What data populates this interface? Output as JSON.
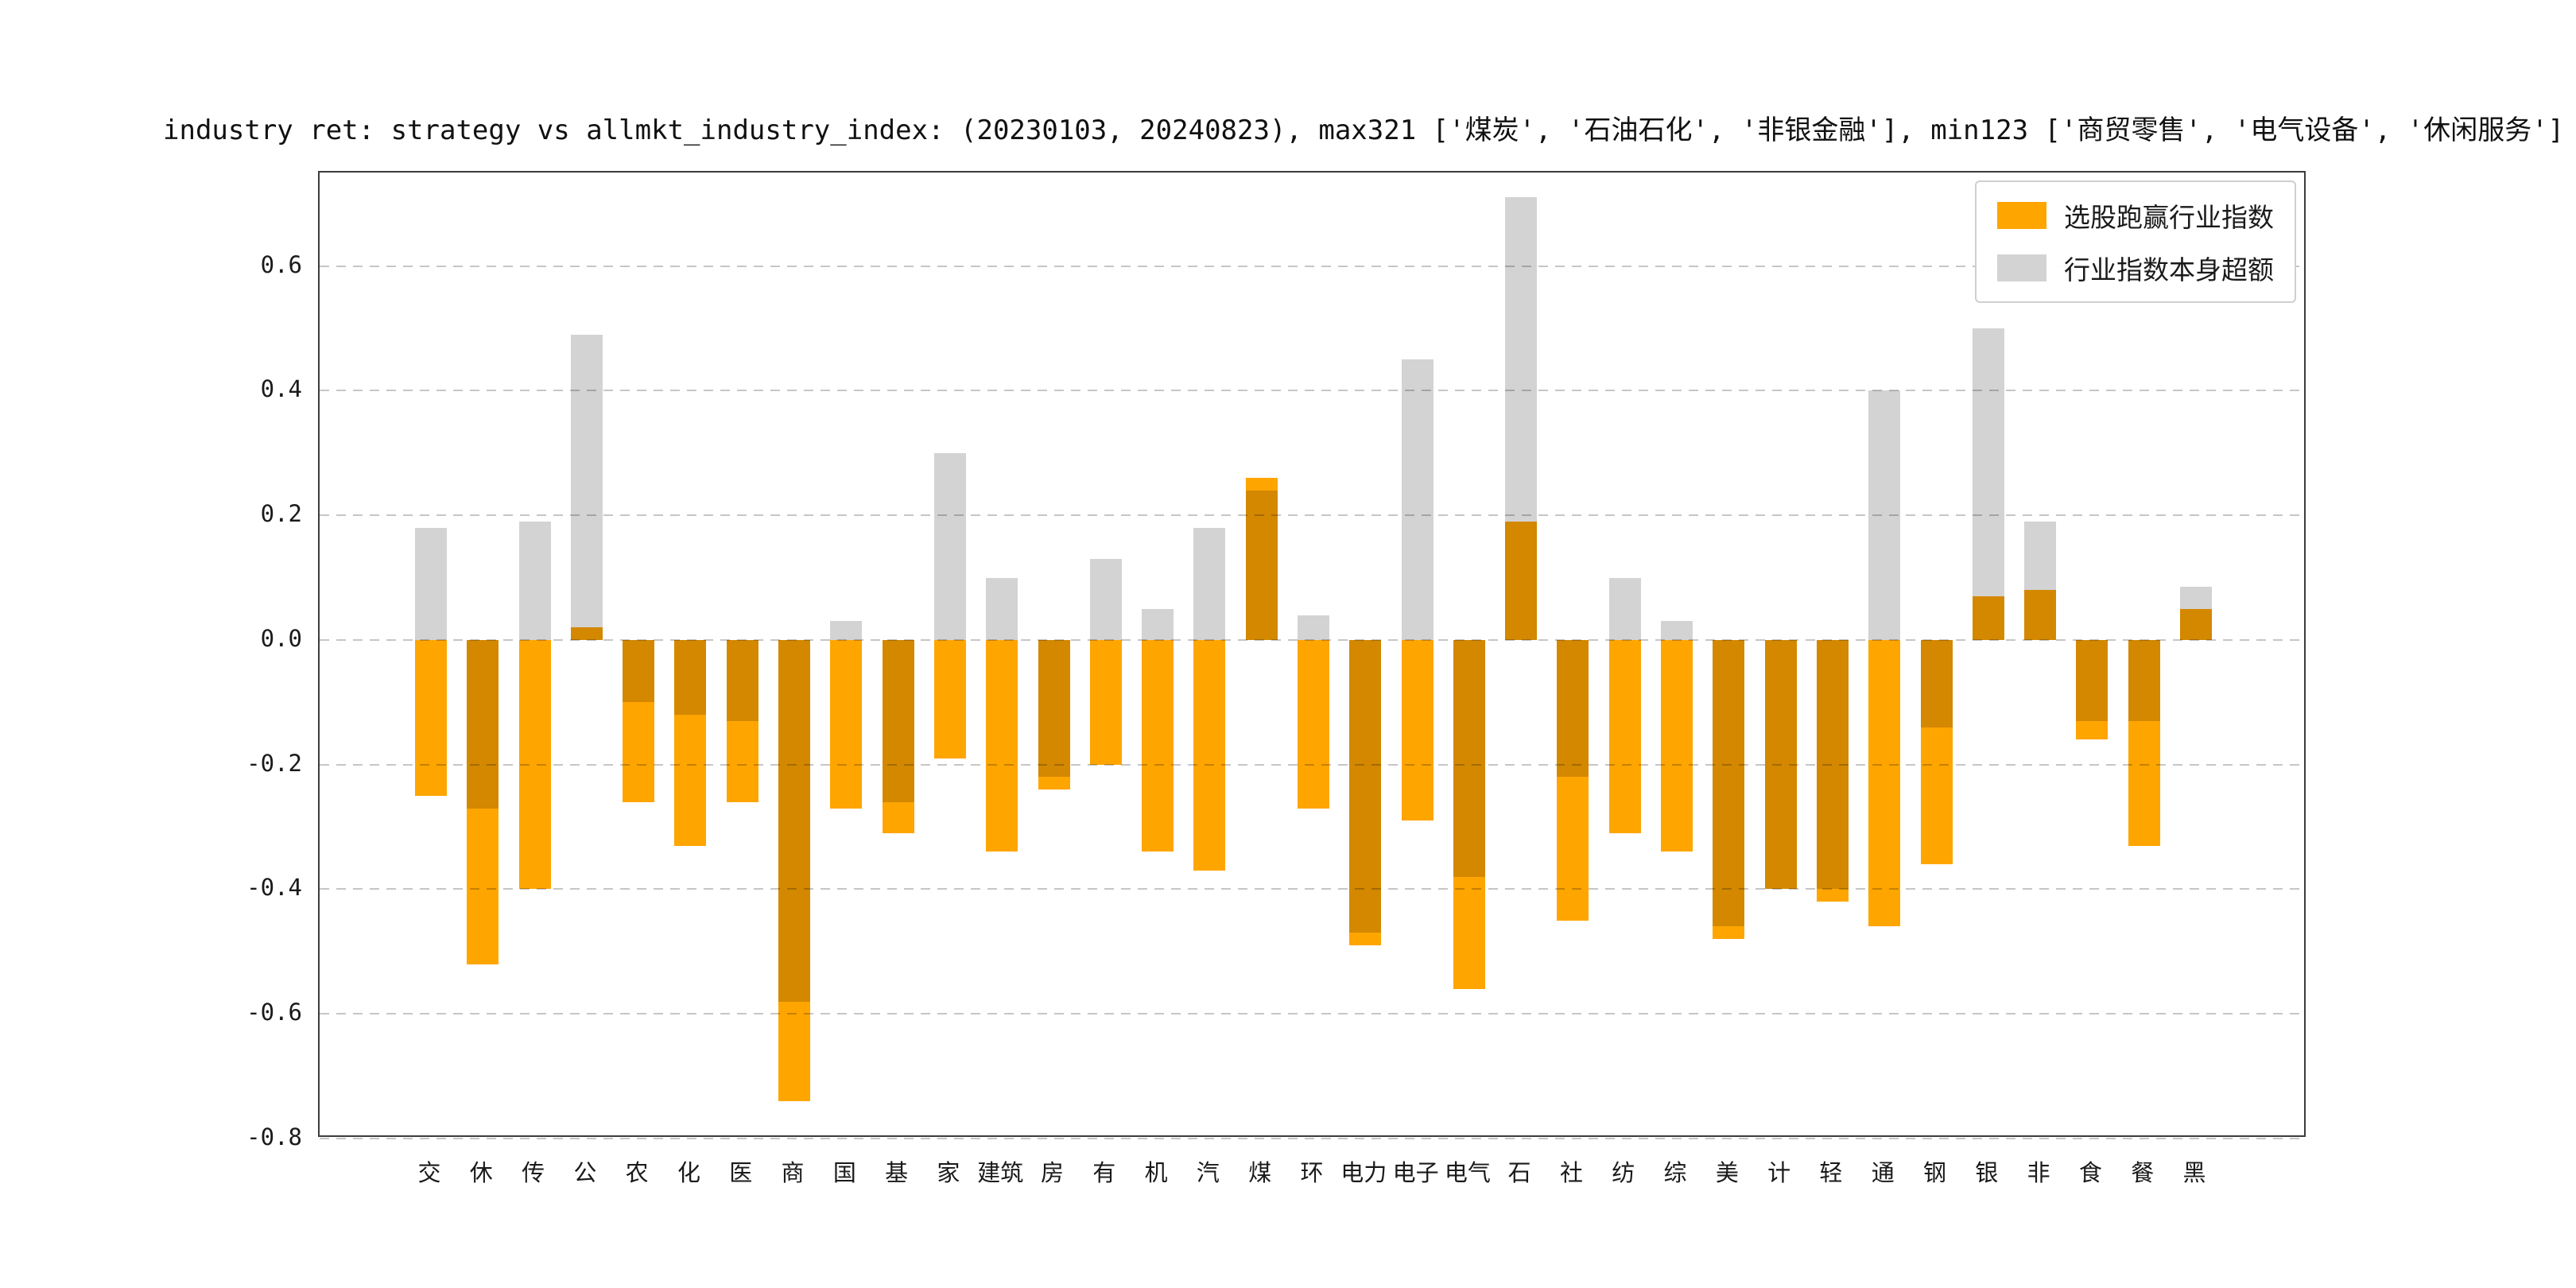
{
  "chart_data": {
    "type": "bar",
    "title": "industry ret: strategy vs allmkt_industry_index: (20230103, 20240823), max321 ['煤炭', '石油石化', '非银金融'], min123 ['商贸零售', '电气设备', '休闲服务']",
    "categories": [
      "交",
      "休",
      "传",
      "公",
      "农",
      "化",
      "医",
      "商",
      "国",
      "基",
      "家",
      "建筑",
      "房",
      "有",
      "机",
      "汽",
      "煤",
      "环",
      "电力",
      "电子",
      "电气",
      "石",
      "社",
      "纺",
      "综",
      "美",
      "计",
      "轻",
      "通",
      "钢",
      "银",
      "非",
      "食",
      "餐",
      "黑"
    ],
    "series": [
      {
        "name": "选股跑赢行业指数",
        "color": "#FFA500",
        "values": [
          -0.25,
          -0.52,
          -0.4,
          0.02,
          -0.26,
          -0.33,
          -0.26,
          -0.74,
          -0.27,
          -0.31,
          -0.19,
          -0.34,
          -0.24,
          -0.2,
          -0.34,
          -0.37,
          0.26,
          -0.27,
          -0.49,
          -0.29,
          -0.56,
          0.19,
          -0.45,
          -0.31,
          -0.34,
          -0.48,
          -0.4,
          -0.42,
          -0.46,
          -0.36,
          0.07,
          0.08,
          -0.16,
          -0.33,
          0.05
        ]
      },
      {
        "name": "行业指数本身超额",
        "color": "#D3D3D3",
        "values": [
          0.18,
          -0.27,
          0.19,
          0.49,
          -0.1,
          -0.12,
          -0.13,
          -0.58,
          0.03,
          -0.26,
          0.3,
          0.1,
          -0.22,
          0.13,
          0.05,
          0.18,
          0.24,
          0.04,
          -0.47,
          0.45,
          -0.38,
          0.71,
          -0.22,
          0.1,
          0.03,
          -0.46,
          -0.4,
          -0.4,
          0.4,
          -0.14,
          0.5,
          0.19,
          -0.13,
          -0.13,
          0.085
        ]
      }
    ],
    "yticks": [
      -0.8,
      -0.6,
      -0.4,
      -0.2,
      0.0,
      0.2,
      0.4,
      0.6
    ],
    "ylim": [
      -0.8,
      0.75
    ],
    "xlabel": "",
    "ylabel": "",
    "grid": "dashed-horizontal",
    "legend_position": "upper right",
    "background": "#FFFFFF"
  }
}
